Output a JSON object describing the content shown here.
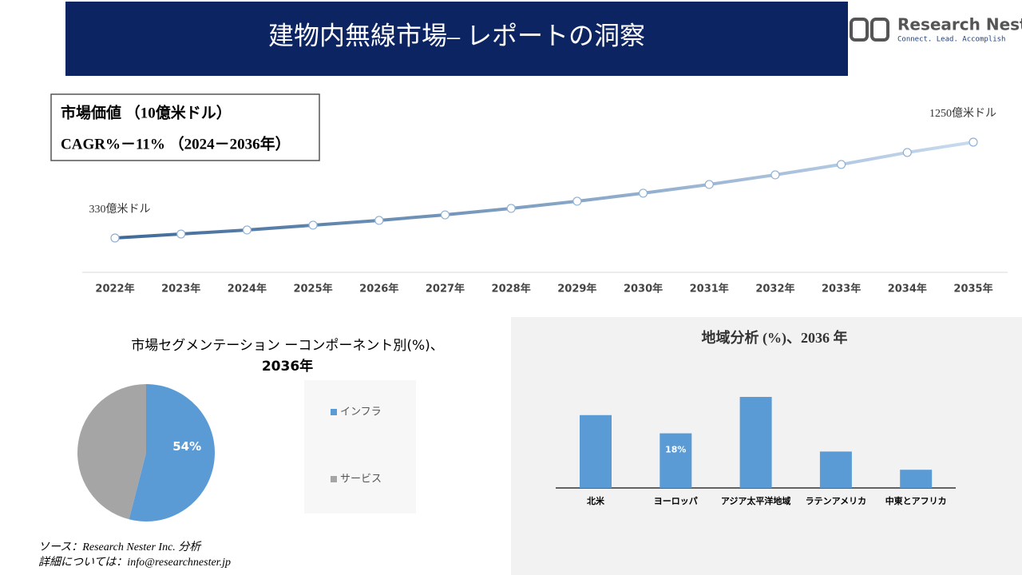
{
  "header": {
    "title": "建物内無線市場– レポートの洞察"
  },
  "logo": {
    "name": "Research Nester",
    "tagline": "Connect. Lead. Accomplish"
  },
  "info_box": {
    "lines": [
      "市場価値 （10億米ドル）",
      "CAGR%－11% （2024－2036年）"
    ]
  },
  "chart_data": [
    {
      "type": "line",
      "categories": [
        "2022年",
        "2023年",
        "2024年",
        "2025年",
        "2026年",
        "2027年",
        "2028年",
        "2029年",
        "2030年",
        "2031年",
        "2032年",
        "2033年",
        "2034年",
        "2035年"
      ],
      "values": [
        330,
        368,
        407,
        453,
        499,
        552,
        614,
        683,
        760,
        844,
        936,
        1036,
        1151,
        1250
      ],
      "value_labels": [
        "330億米ドル",
        null,
        null,
        null,
        null,
        null,
        null,
        null,
        null,
        null,
        null,
        null,
        null,
        "1250億米ドル"
      ],
      "color": [
        "#3f6a98",
        "#c8daef"
      ]
    },
    {
      "type": "pie",
      "title": [
        "市場セグメンテーション ーコンポーネント別(%)、",
        "2036年"
      ],
      "categories": [
        "インフラ",
        "サービス"
      ],
      "values": [
        54,
        46
      ],
      "value_labels": [
        "54%",
        null
      ],
      "colors": [
        "#5b9bd5",
        "#a5a5a5"
      ]
    },
    {
      "type": "bar",
      "title": "地域分析 (%)、2036 年",
      "categories": [
        "北米",
        "ヨーロッパ",
        "アジア太平洋地域",
        "ラテンアメリカ",
        "中東とアフリカ"
      ],
      "values": [
        24,
        18,
        30,
        12,
        6
      ],
      "value_labels": [
        null,
        "18%",
        null,
        null,
        null
      ],
      "color": "#5b9bd5"
    }
  ],
  "footer": {
    "lines": [
      "ソース：Research Nester Inc. 分析",
      "詳細については：info@researchnester.jp"
    ]
  }
}
